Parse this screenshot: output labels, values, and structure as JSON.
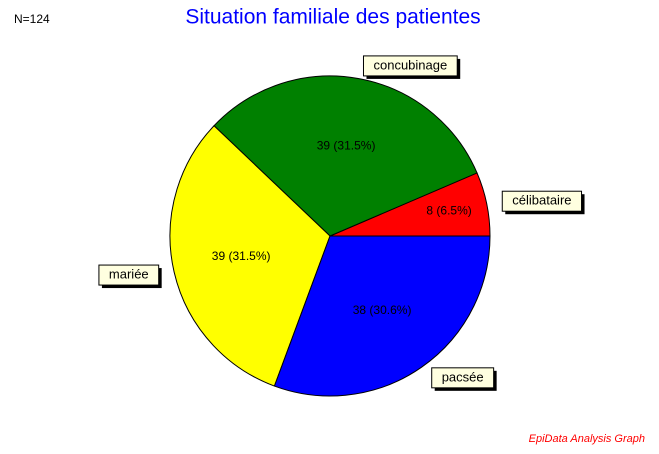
{
  "chart_data": {
    "type": "pie",
    "title": "Situation familiale des patientes",
    "n_label": "N=124",
    "footer": "EpiData Analysis Graph",
    "categories": [
      "célibataire",
      "concubinage",
      "mariée",
      "pacsée"
    ],
    "values": [
      8,
      39,
      39,
      38
    ],
    "value_labels": [
      "8 (6.5%)",
      "39 (31.5%)",
      "39 (31.5%)",
      "38 (30.6%)"
    ],
    "colors": [
      "#ff0000",
      "#008000",
      "#ffff00",
      "#0000ff"
    ]
  }
}
